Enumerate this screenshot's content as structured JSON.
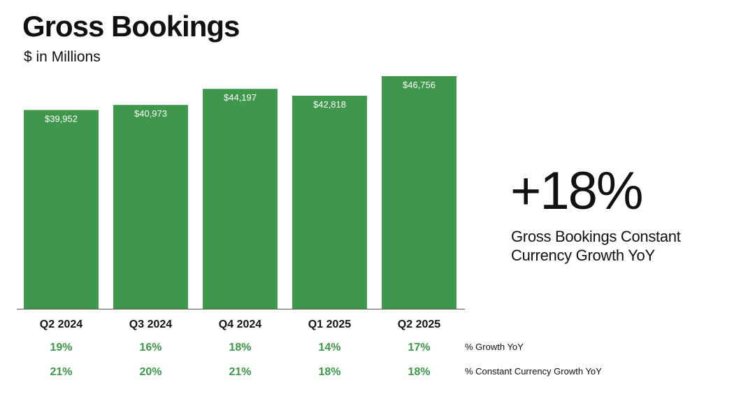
{
  "title": "Gross Bookings",
  "subtitle": "$ in Millions",
  "kpi": {
    "value": "+18%",
    "caption": "Gross Bookings Constant Currency Growth YoY"
  },
  "colors": {
    "bar": "#3f974c",
    "growth_text": "#3f974c"
  },
  "chart_data": {
    "type": "bar",
    "title": "Gross Bookings",
    "ylabel": "$ in Millions",
    "categories": [
      "Q2 2024",
      "Q3 2024",
      "Q4 2024",
      "Q1 2025",
      "Q2 2025"
    ],
    "values": [
      39952,
      40973,
      44197,
      42818,
      46756
    ],
    "value_labels": [
      "$39,952",
      "$40,973",
      "$44,197",
      "$42,818",
      "$46,756"
    ],
    "ylim": [
      0,
      46756
    ],
    "rows": [
      {
        "label": "% Growth YoY",
        "values": [
          "19%",
          "16%",
          "18%",
          "14%",
          "17%"
        ]
      },
      {
        "label": "% Constant Currency Growth YoY",
        "values": [
          "21%",
          "20%",
          "21%",
          "18%",
          "18%"
        ]
      }
    ]
  }
}
